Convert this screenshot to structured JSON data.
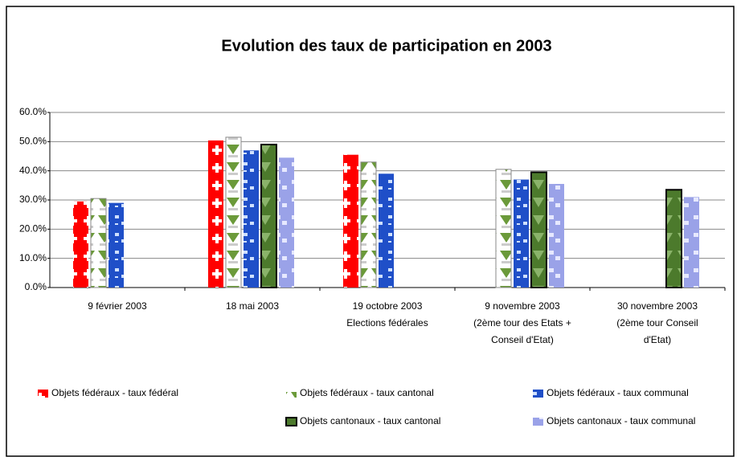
{
  "chart_data": {
    "type": "bar",
    "title": "Evolution des taux de participation en 2003",
    "categories": [
      [
        "9 février 2003"
      ],
      [
        "18 mai 2003"
      ],
      [
        "19 octobre 2003",
        "Elections fédérales"
      ],
      [
        "9 novembre 2003",
        "(2ème tour des Etats +",
        "Conseil d'Etat)"
      ],
      [
        "30 novembre 2003",
        "(2ème tour Conseil",
        "d'Etat)"
      ]
    ],
    "series": [
      {
        "name": "Objets fédéraux - taux fédéral",
        "color": "#ff0000",
        "values": [
          29.5,
          50.4,
          45.5,
          null,
          null
        ]
      },
      {
        "name": "Objets fédéraux - taux cantonal",
        "color": "#6b9a3a",
        "values": [
          30.5,
          51.5,
          43,
          40.5,
          null
        ]
      },
      {
        "name": "Objets fédéraux - taux communal",
        "color": "#1f4fc8",
        "values": [
          29,
          47,
          39,
          37,
          null
        ]
      },
      {
        "name": "Objets cantonaux - taux cantonal",
        "color": "#4c7a2c",
        "values": [
          null,
          49,
          null,
          39.5,
          33.5
        ]
      },
      {
        "name": "Objets cantonaux - taux communal",
        "color": "#9aa2e8",
        "values": [
          null,
          44.5,
          null,
          35.5,
          31
        ]
      }
    ],
    "ylim": [
      0,
      60
    ],
    "yticks": [
      {
        "value": 0,
        "label": "0.0%"
      },
      {
        "value": 10,
        "label": "10.0%"
      },
      {
        "value": 20,
        "label": "20.0%"
      },
      {
        "value": 30,
        "label": "30.0%"
      },
      {
        "value": 40,
        "label": "40.0%"
      },
      {
        "value": 50,
        "label": "50.0%"
      },
      {
        "value": 60,
        "label": "60.0%"
      }
    ],
    "grid": true
  }
}
